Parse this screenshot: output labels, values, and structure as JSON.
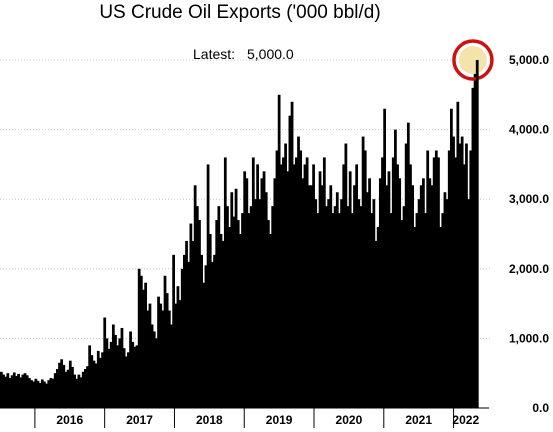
{
  "chart_data": {
    "type": "bar",
    "title": "US Crude Oil Exports ('000 bbl/d)",
    "annotation": {
      "label": "Latest:",
      "value_text": "5,000.0",
      "value": 5000,
      "highlight_color": "#cc1111",
      "highlight_fill": "#f4e2a8"
    },
    "bar_color": "#000000",
    "gridlines": true,
    "x_axis": {
      "ticks": [
        "2016",
        "2017",
        "2018",
        "2019",
        "2020",
        "2021",
        "2022"
      ],
      "start": 2015.5,
      "end": 2022.35
    },
    "y_axis": {
      "position": "right",
      "ylim": [
        0,
        5000
      ],
      "ticks": [
        0,
        1000,
        2000,
        3000,
        4000,
        5000
      ],
      "tick_labels": [
        "0.0",
        "1,000.0",
        "2,000.0",
        "3,000.0",
        "4,000.0",
        "5,000.0"
      ]
    },
    "series": [
      {
        "frequency": "weekly",
        "values": [
          520,
          480,
          450,
          500,
          430,
          470,
          510,
          460,
          490,
          440,
          480,
          500,
          470,
          430,
          400,
          380,
          420,
          390,
          360,
          410,
          380,
          350,
          400,
          430,
          420,
          500,
          560,
          650,
          700,
          620,
          520,
          550,
          680,
          590,
          480,
          420,
          480,
          440,
          520,
          560,
          600,
          900,
          760,
          680,
          640,
          820,
          720,
          800,
          1300,
          1000,
          850,
          950,
          1200,
          1050,
          900,
          1000,
          1150,
          860,
          740,
          800,
          1100,
          950,
          880,
          900,
          2000,
          1900,
          1700,
          1800,
          1400,
          1500,
          1200,
          1100,
          1000,
          1600,
          1500,
          1400,
          1900,
          1650,
          1400,
          1200,
          2200,
          1500,
          1750,
          1550,
          2000,
          2200,
          2400,
          2100,
          2650,
          2400,
          3200,
          2900,
          2700,
          2200,
          1800,
          2050,
          3500,
          2500,
          2100,
          2200,
          2700,
          2900,
          2500,
          2400,
          3600,
          2900,
          2600,
          3100,
          2750,
          3150,
          2700,
          2500,
          2800,
          3400,
          3300,
          2800,
          2900,
          3600,
          3000,
          3500,
          3000,
          3300,
          3400,
          3100,
          2700,
          2500,
          2900,
          3300,
          3700,
          4500,
          3500,
          3600,
          3800,
          3400,
          4200,
          4400,
          3500,
          3600,
          3900,
          3700,
          3300,
          3500,
          3600,
          3200,
          3200,
          3500,
          3000,
          2800,
          3400,
          3200,
          3600,
          2900,
          3000,
          3200,
          2800,
          2900,
          3100,
          2800,
          3000,
          3500,
          3800,
          2900,
          3400,
          2800,
          3200,
          3500,
          3000,
          2900,
          3900,
          3700,
          3100,
          3300,
          2800,
          3000,
          2400,
          2600,
          3300,
          3600,
          4300,
          3200,
          3400,
          2800,
          3600,
          4000,
          3500,
          3300,
          2700,
          2900,
          3800,
          4100,
          3500,
          3200,
          2600,
          2800,
          3000,
          3200,
          3300,
          2800,
          3700,
          3300,
          3200,
          3600,
          3700,
          3600,
          2600,
          2800,
          3100,
          3000,
          3700,
          4300,
          3900,
          3600,
          4400,
          3800,
          3900,
          3500,
          3800,
          3000,
          3700,
          4600,
          4800,
          5000
        ]
      }
    ]
  }
}
